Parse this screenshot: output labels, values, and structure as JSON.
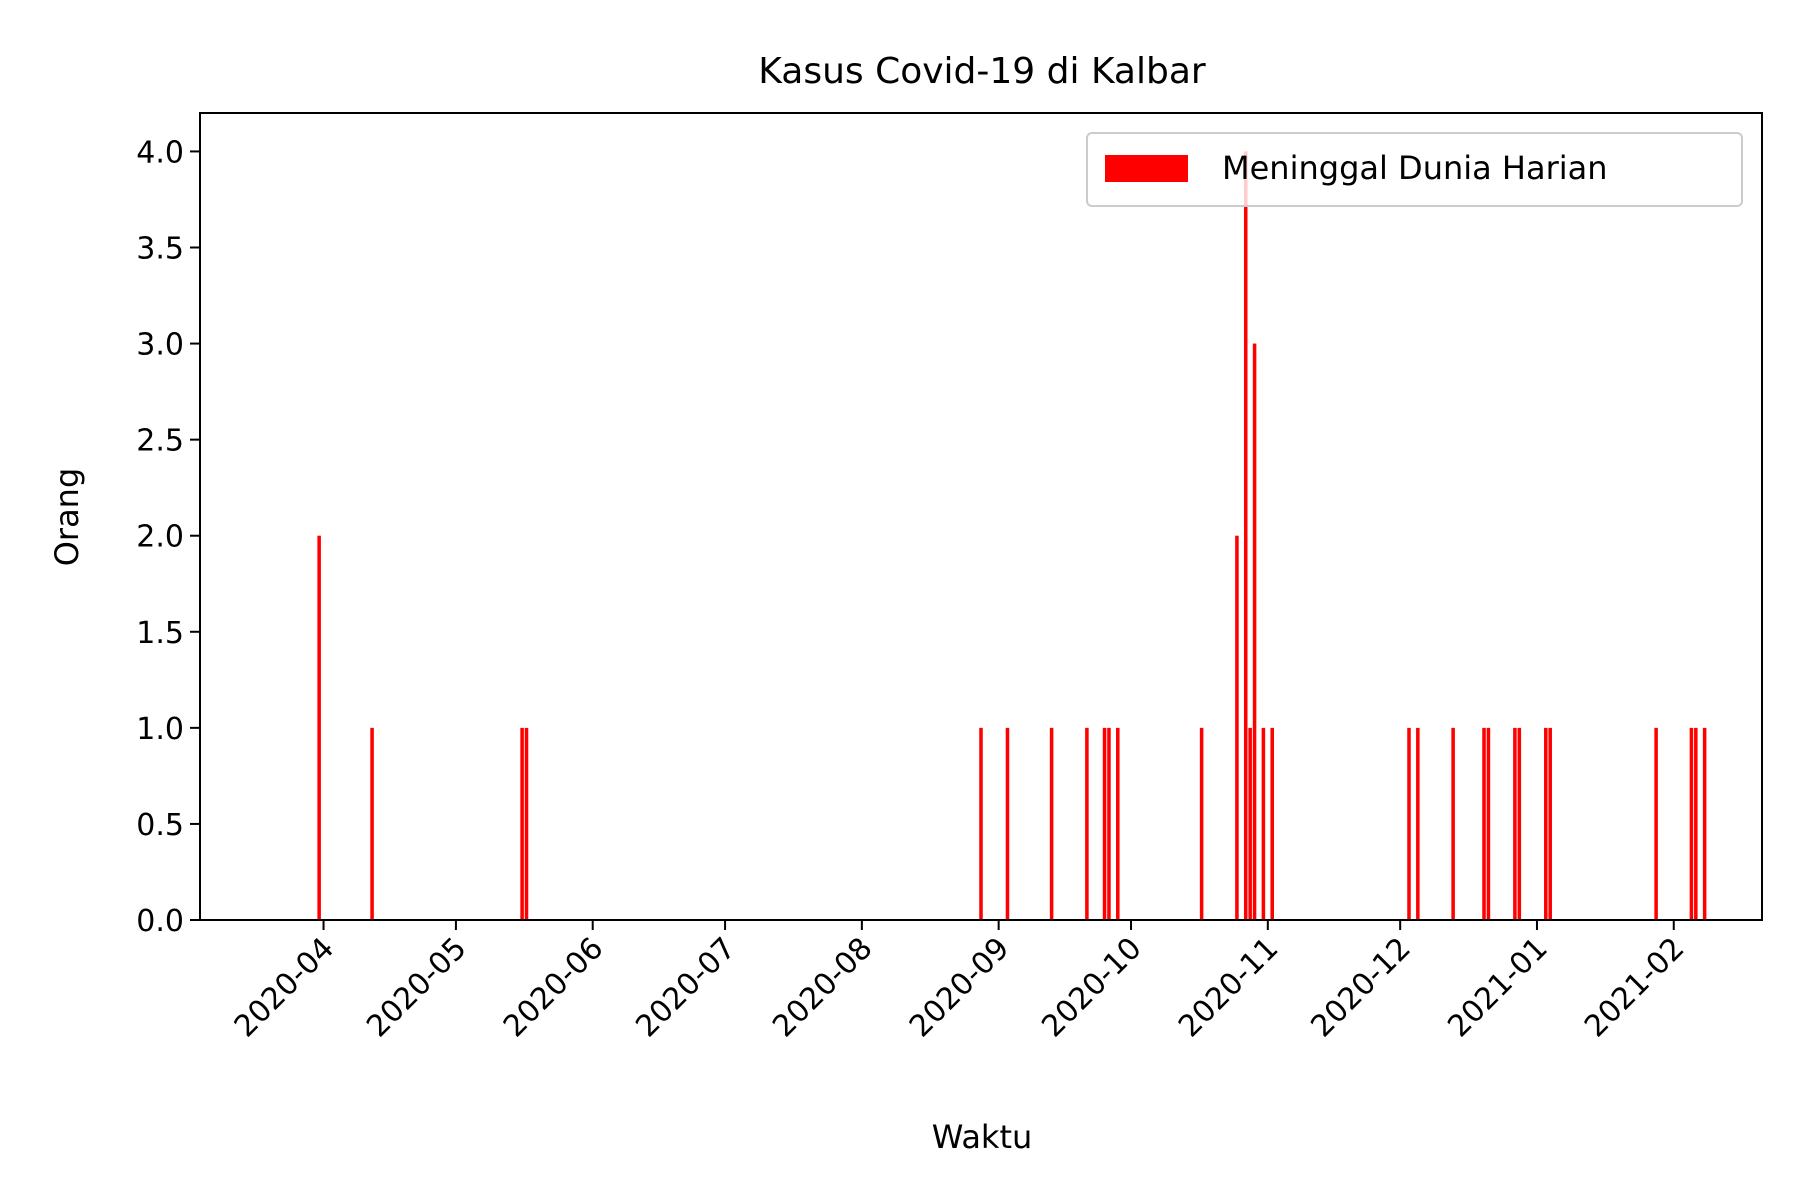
{
  "chart_data": {
    "type": "bar",
    "title": "Kasus Covid-19 di Kalbar",
    "xlabel": "Waktu",
    "ylabel": "Orang",
    "ylim": [
      0,
      4.2
    ],
    "xlim": [
      "2020-03-04",
      "2021-02-21"
    ],
    "yticks": [
      "0.0",
      "0.5",
      "1.0",
      "1.5",
      "2.0",
      "2.5",
      "3.0",
      "3.5",
      "4.0"
    ],
    "xticks": [
      "2020-04",
      "2020-05",
      "2020-06",
      "2020-07",
      "2020-08",
      "2020-09",
      "2020-10",
      "2020-11",
      "2020-12",
      "2021-01",
      "2021-02"
    ],
    "grid": false,
    "legend_position": "top-right",
    "series": [
      {
        "name": "Meninggal Dunia Harian",
        "color": "#ff0000",
        "x": [
          "2020-03-31",
          "2020-04-12",
          "2020-05-16",
          "2020-05-17",
          "2020-08-28",
          "2020-09-03",
          "2020-09-13",
          "2020-09-21",
          "2020-09-25",
          "2020-09-26",
          "2020-09-28",
          "2020-10-17",
          "2020-10-25",
          "2020-10-27",
          "2020-10-28",
          "2020-10-29",
          "2020-10-31",
          "2020-11-02",
          "2020-12-03",
          "2020-12-05",
          "2020-12-13",
          "2020-12-20",
          "2020-12-21",
          "2020-12-27",
          "2020-12-28",
          "2021-01-03",
          "2021-01-04",
          "2021-01-28",
          "2021-02-05",
          "2021-02-06",
          "2021-02-08"
        ],
        "values": [
          2,
          1,
          1,
          1,
          1,
          1,
          1,
          1,
          1,
          1,
          1,
          1,
          2,
          4,
          1,
          3,
          1,
          1,
          1,
          1,
          1,
          1,
          1,
          1,
          1,
          1,
          1,
          1,
          1,
          1,
          1
        ]
      }
    ]
  }
}
